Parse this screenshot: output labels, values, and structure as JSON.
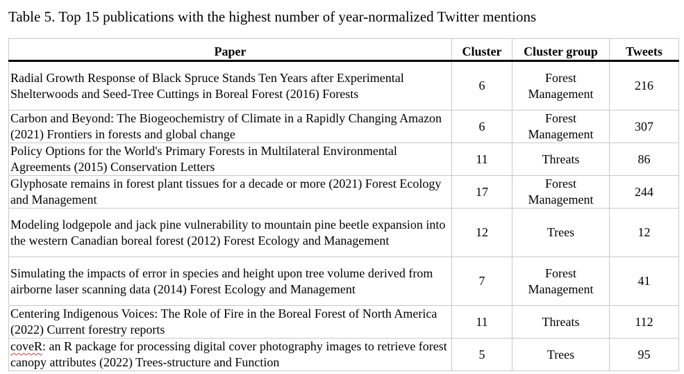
{
  "caption": "Table 5. Top 15 publications with the highest number of year-normalized Twitter mentions",
  "headers": {
    "paper": "Paper",
    "cluster": "Cluster",
    "cluster_group": "Cluster group",
    "tweets": "Tweets"
  },
  "rows": [
    {
      "paper": "Radial Growth Response of Black Spruce Stands Ten Years after Experimental Shelterwoods and Seed-Tree Cuttings in Boreal Forest (2016) Forests",
      "cluster": "6",
      "group": "Forest Management",
      "tweets": "216"
    },
    {
      "paper": "Carbon and Beyond: The Biogeochemistry of Climate in a Rapidly Changing Amazon (2021) Frontiers in forests and global change",
      "cluster": "6",
      "group": "Forest Management",
      "tweets": "307"
    },
    {
      "paper": "Policy Options for the World's Primary Forests in Multilateral Environmental Agreements (2015) Conservation Letters",
      "cluster": "11",
      "group": "Threats",
      "tweets": "86"
    },
    {
      "paper": "Glyphosate remains in forest plant tissues for a decade or more (2021) Forest Ecology and Management",
      "cluster": "17",
      "group": "Forest Management",
      "tweets": "244"
    },
    {
      "paper": "Modeling lodgepole and jack pine vulnerability to mountain pine beetle expansion into the western Canadian boreal forest (2012) Forest Ecology and Management",
      "cluster": "12",
      "group": "Trees",
      "tweets": "12"
    },
    {
      "paper": "Simulating the impacts of error in species and height upon tree volume derived from airborne laser scanning data (2014) Forest Ecology and Management",
      "cluster": "7",
      "group": "Forest Management",
      "tweets": "41"
    },
    {
      "paper": "Centering Indigenous Voices: The Role of Fire in the Boreal Forest of North America (2022) Current forestry reports",
      "cluster": "11",
      "group": "Threats",
      "tweets": "112"
    },
    {
      "paper_word": "coveR",
      "paper_rest": ": an R package for processing digital cover photography images to retrieve forest canopy attributes (2022) Trees-structure and Function",
      "cluster": "5",
      "group": "Trees",
      "tweets": "95"
    }
  ]
}
